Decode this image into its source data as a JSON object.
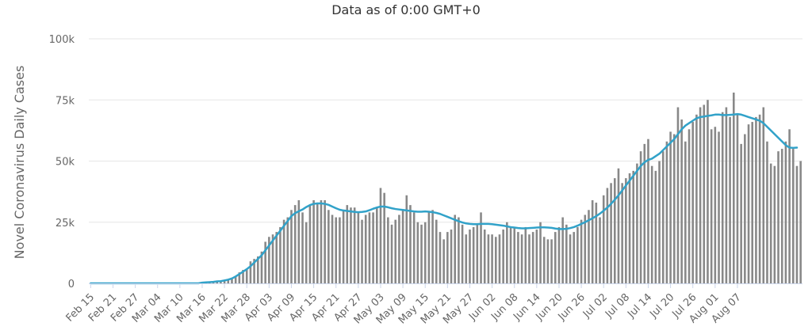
{
  "chart_data": {
    "type": "bar",
    "title": "",
    "subtitle": "Data as of 0:00 GMT+0",
    "ylabel": "Novel Coronavirus Daily Cases",
    "xlabel": "",
    "ylim": [
      0,
      100000
    ],
    "yticks": [
      0,
      25000,
      50000,
      75000,
      100000
    ],
    "ytick_labels": [
      "0",
      "25k",
      "50k",
      "75k",
      "100k"
    ],
    "x_tick_labels": [
      "Feb 15",
      "Feb 21",
      "Feb 27",
      "Mar 04",
      "Mar 10",
      "Mar 16",
      "Mar 22",
      "Mar 28",
      "Apr 03",
      "Apr 09",
      "Apr 15",
      "Apr 21",
      "Apr 27",
      "May 03",
      "May 09",
      "May 15",
      "May 21",
      "May 27",
      "Jun 02",
      "Jun 08",
      "Jun 14",
      "Jun 20",
      "Jun 26",
      "Jul 02",
      "Jul 08",
      "Jul 14",
      "Jul 20",
      "Jul 26",
      "Aug 01",
      "Aug 07"
    ],
    "grid": true,
    "legend": "none",
    "colors": {
      "bars": "#888888",
      "line": "#31a2c9",
      "grid": "#e6e6e6",
      "axis": "#ccd6eb"
    },
    "series": [
      {
        "type": "bar",
        "values": [
          0,
          0,
          0,
          0,
          0,
          0,
          0,
          0,
          0,
          0,
          0,
          0,
          0,
          0,
          0,
          0,
          0,
          0,
          0,
          0,
          0,
          0,
          0,
          0,
          0,
          0,
          0,
          0,
          0,
          0,
          200,
          300,
          400,
          500,
          700,
          900,
          1200,
          1500,
          2200,
          3000,
          4500,
          5500,
          6000,
          9000,
          10000,
          11000,
          13000,
          17000,
          19000,
          20000,
          21000,
          23000,
          26000,
          27000,
          30000,
          32000,
          34000,
          29000,
          25000,
          32000,
          34000,
          33000,
          34000,
          34000,
          30000,
          28000,
          27000,
          27000,
          30000,
          32000,
          31000,
          31000,
          29000,
          26000,
          28000,
          29000,
          29000,
          31000,
          39000,
          37000,
          27000,
          24000,
          26000,
          28000,
          30000,
          36000,
          32000,
          29000,
          25000,
          24000,
          25000,
          29000,
          30000,
          26000,
          21000,
          18000,
          21000,
          22000,
          28000,
          27000,
          24000,
          20000,
          22000,
          23000,
          24000,
          29000,
          22000,
          20000,
          20000,
          19000,
          20000,
          22000,
          25000,
          23000,
          23000,
          21000,
          20000,
          23000,
          20000,
          21000,
          22000,
          25000,
          19000,
          18000,
          18000,
          21000,
          23000,
          27000,
          24000,
          20000,
          21000,
          23000,
          26000,
          28000,
          30000,
          34000,
          33000,
          27000,
          36000,
          39000,
          41000,
          43000,
          47000,
          41000,
          43000,
          45000,
          46000,
          49000,
          54000,
          57000,
          59000,
          48000,
          46000,
          50000,
          54000,
          58000,
          62000,
          61000,
          72000,
          67000,
          58000,
          63000,
          66000,
          69000,
          72000,
          73000,
          75000,
          63000,
          64000,
          62000,
          70000,
          72000,
          68000,
          78000,
          69000,
          57000,
          61000,
          65000,
          66000,
          68000,
          69000,
          72000,
          58000,
          49000,
          48000,
          54000,
          55000,
          58000,
          63000,
          55000,
          48000,
          50000
        ]
      },
      {
        "type": "line",
        "values": [
          0,
          0,
          0,
          0,
          0,
          0,
          0,
          0,
          0,
          0,
          0,
          0,
          0,
          0,
          0,
          0,
          0,
          0,
          0,
          0,
          0,
          0,
          0,
          0,
          0,
          0,
          0,
          0,
          0,
          0,
          300,
          400,
          500,
          600,
          800,
          900,
          1200,
          1500,
          2000,
          2800,
          3800,
          4800,
          5800,
          7000,
          8500,
          10000,
          11500,
          13500,
          15500,
          17500,
          19500,
          21500,
          23500,
          25500,
          27500,
          28700,
          29500,
          30200,
          31200,
          32000,
          32500,
          32700,
          32700,
          32500,
          32100,
          31400,
          30700,
          30100,
          29800,
          29600,
          29400,
          29200,
          29100,
          29200,
          29400,
          29900,
          30500,
          31000,
          31400,
          31400,
          31100,
          30700,
          30400,
          30200,
          30000,
          29800,
          29600,
          29400,
          29300,
          29300,
          29400,
          29300,
          29100,
          28800,
          28400,
          27800,
          27200,
          26600,
          26000,
          25400,
          24900,
          24500,
          24300,
          24200,
          24200,
          24300,
          24300,
          24300,
          24200,
          24000,
          23800,
          23600,
          23300,
          23000,
          22800,
          22600,
          22500,
          22500,
          22600,
          22700,
          22800,
          22900,
          22900,
          22800,
          22700,
          22400,
          22200,
          22200,
          22300,
          22600,
          23000,
          23600,
          24300,
          25000,
          25800,
          26600,
          27500,
          28500,
          29700,
          31000,
          32500,
          34200,
          36000,
          38000,
          40000,
          42000,
          44000,
          46000,
          48000,
          49500,
          50500,
          51000,
          52000,
          53000,
          54500,
          56000,
          57500,
          59000,
          61000,
          63000,
          64500,
          65500,
          66500,
          67500,
          68000,
          68200,
          68500,
          68700,
          69000,
          69000,
          68800,
          68800,
          68900,
          69000,
          69200,
          69000,
          68500,
          68000,
          67500,
          67000,
          66500,
          65500,
          64000,
          62500,
          61000,
          59500,
          58000,
          56500,
          55500,
          55400,
          55500
        ]
      }
    ]
  }
}
